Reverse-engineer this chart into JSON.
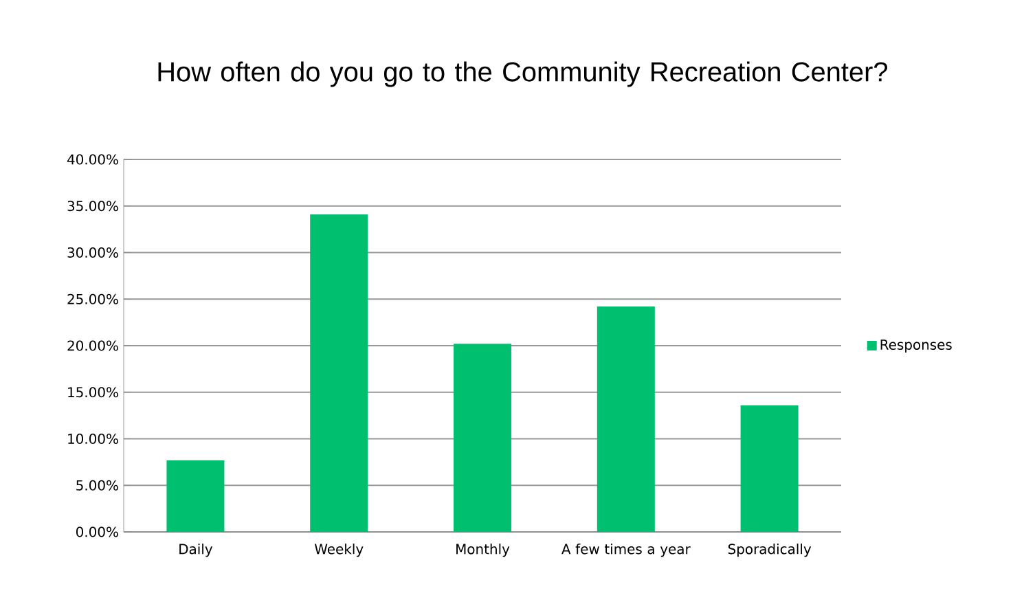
{
  "chart_data": {
    "type": "bar",
    "title": "How often do you go to the Community Recreation Center?",
    "categories": [
      "Daily",
      "Weekly",
      "Monthly",
      "A few times a year",
      "Sporadically"
    ],
    "series": [
      {
        "name": "Responses",
        "color": "#00bf6f",
        "values": [
          7.7,
          34.1,
          20.2,
          24.2,
          13.6
        ]
      }
    ],
    "ylim": [
      0,
      40
    ],
    "yticks": [
      {
        "value": 0,
        "label": "0.00%"
      },
      {
        "value": 5,
        "label": "5.00%"
      },
      {
        "value": 10,
        "label": "10.00%"
      },
      {
        "value": 15,
        "label": "15.00%"
      },
      {
        "value": 20,
        "label": "20.00%"
      },
      {
        "value": 25,
        "label": "25.00%"
      },
      {
        "value": 30,
        "label": "30.00%"
      },
      {
        "value": 35,
        "label": "35.00%"
      },
      {
        "value": 40,
        "label": "40.00%"
      }
    ],
    "grid": "y",
    "legend": "right"
  }
}
